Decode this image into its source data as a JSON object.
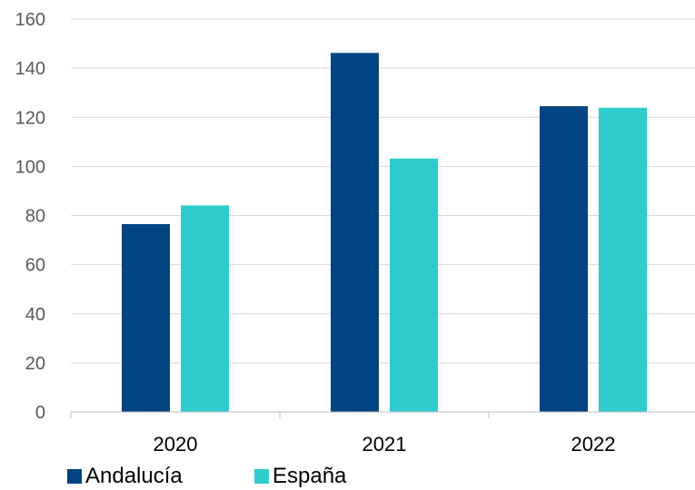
{
  "chart_data": {
    "type": "bar",
    "categories": [
      "2020",
      "2021",
      "2022"
    ],
    "series": [
      {
        "name": "Andalucía",
        "color": "#004481",
        "values": [
          76.5,
          146.2,
          124.5
        ]
      },
      {
        "name": "España",
        "color": "#2DCCCD",
        "values": [
          84.1,
          103.2,
          123.9
        ]
      }
    ],
    "y_ticks": [
      "0",
      "20",
      "40",
      "60",
      "80",
      "100",
      "120",
      "140",
      "160"
    ],
    "ylim": [
      0,
      160
    ],
    "grid": true,
    "legend_position": "bottom-left"
  }
}
